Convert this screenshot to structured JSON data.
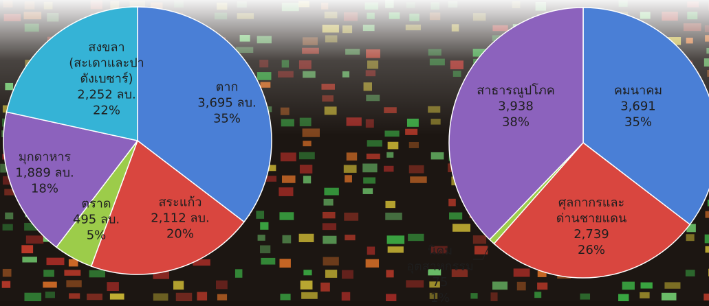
{
  "chart_data": [
    {
      "type": "pie",
      "categories": [
        "ตาก",
        "สระแก้ว",
        "ตราด",
        "มุกดาหาร",
        "สงขลา\n(สะเดาและปา\nดังเบซาร์)"
      ],
      "values": [
        3695,
        2112,
        495,
        1889,
        2252
      ],
      "value_labels": [
        "3,695 ลบ.",
        "2,112 ลบ.",
        "495 ลบ.",
        "1,889 ลบ.",
        "2,252 ลบ."
      ],
      "percent_labels": [
        "35%",
        "20%",
        "5%",
        "18%",
        "22%"
      ],
      "colors": [
        "#4a7fd6",
        "#d9463f",
        "#9ccc4a",
        "#8c62bd",
        "#35b3d6"
      ]
    },
    {
      "type": "pie",
      "categories": [
        "คมนาคม",
        "ศุลกากรและ\nด่านชายแดน",
        "นิคม\nอุตสาหกรรม",
        "สาธารณูปโภค"
      ],
      "values": [
        3691,
        2739,
        75,
        3938
      ],
      "value_labels": [
        "3,691",
        "2,739",
        "75",
        "3,938"
      ],
      "percent_labels": [
        "35%",
        "26%",
        "1%",
        "38%"
      ],
      "colors": [
        "#4a7fd6",
        "#d9463f",
        "#9ccc4a",
        "#8c62bd"
      ]
    }
  ]
}
